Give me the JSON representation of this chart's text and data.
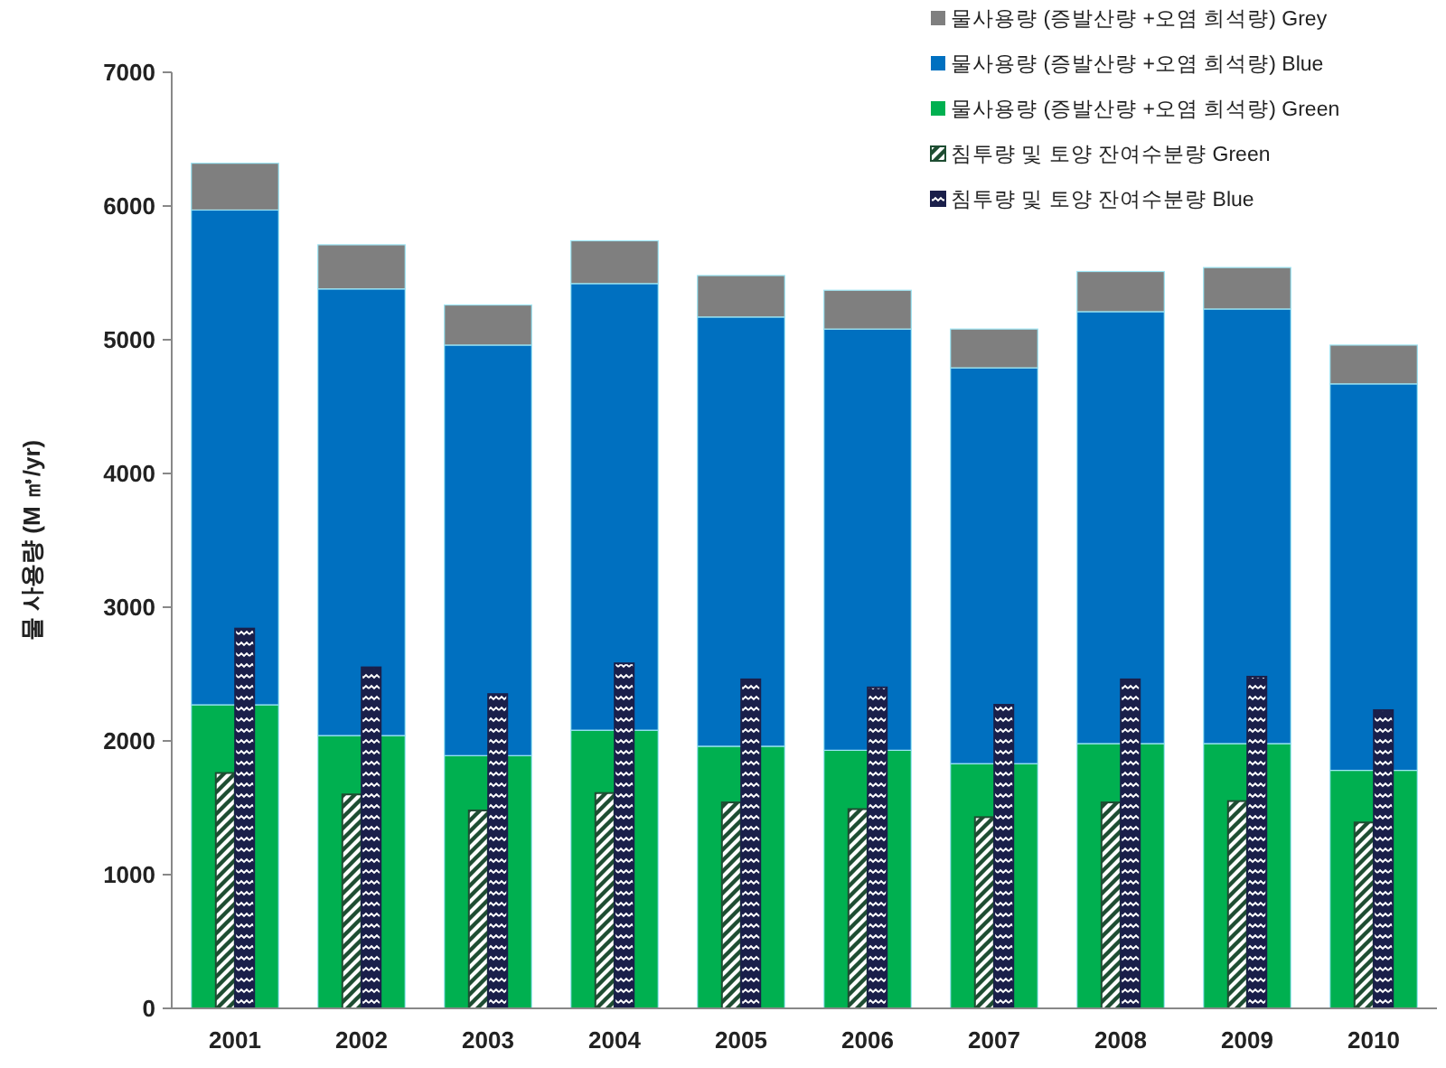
{
  "chart_data": [
    {
      "type": "bar",
      "stacked": true,
      "ylabel": "물 사용량 (M ㎥/yr)",
      "categories": [
        "2001",
        "2002",
        "2003",
        "2004",
        "2005",
        "2006",
        "2007",
        "2008",
        "2009",
        "2010"
      ],
      "ylim": [
        0,
        7000
      ],
      "yticks": [
        0,
        1000,
        2000,
        3000,
        4000,
        5000,
        6000,
        7000
      ],
      "legend": "top right",
      "series": [
        {
          "name": "물사용량 (증발산량 +오염 희석량) Green",
          "color": "#00b050",
          "values": [
            2270,
            2040,
            1890,
            2080,
            1960,
            1930,
            1830,
            1980,
            1980,
            1780
          ]
        },
        {
          "name": "물사용량 (증발산량 +오염 희석량) Blue",
          "color": "#0070c0",
          "values": [
            3700,
            3340,
            3070,
            3340,
            3210,
            3150,
            2960,
            3230,
            3250,
            2890
          ]
        },
        {
          "name": "물사용량 (증발산량 +오염 희석량) Grey",
          "color": "#7f7f7f",
          "values": [
            350,
            330,
            300,
            320,
            310,
            290,
            290,
            300,
            310,
            290
          ]
        }
      ]
    },
    {
      "type": "bar",
      "tick_labels": false,
      "categories": [
        "2001",
        "2002",
        "2003",
        "2004",
        "2005",
        "2006",
        "2007",
        "2008",
        "2009",
        "2010"
      ],
      "ylim": [
        0,
        7000
      ],
      "legend": "top right",
      "series": [
        {
          "name": "침투량 및 토양 잔여수분량 Green",
          "color": "#1e4d32",
          "values": [
            1760,
            1600,
            1480,
            1610,
            1540,
            1490,
            1430,
            1540,
            1550,
            1390
          ]
        },
        {
          "name": "침투량 및 토양 잔여수분량 Blue",
          "color": "#1a1f4a",
          "values": [
            2840,
            2550,
            2350,
            2580,
            2460,
            2400,
            2270,
            2460,
            2480,
            2230
          ]
        }
      ]
    }
  ]
}
